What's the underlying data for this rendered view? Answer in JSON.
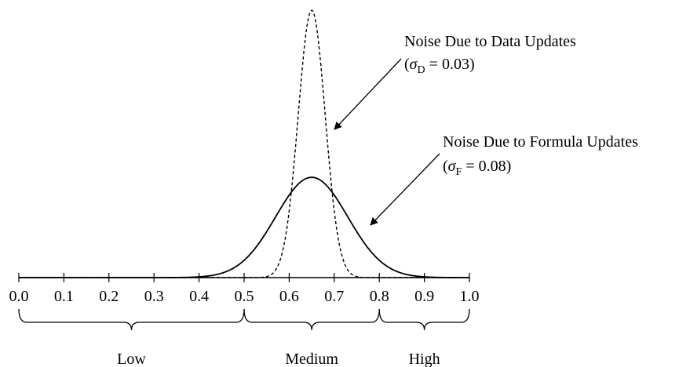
{
  "chart_data": {
    "type": "line",
    "xlim": [
      0.0,
      1.0
    ],
    "grid": false,
    "x_ticks": [
      "0.0",
      "0.1",
      "0.2",
      "0.3",
      "0.4",
      "0.5",
      "0.6",
      "0.7",
      "0.8",
      "0.9",
      "1.0"
    ],
    "series": [
      {
        "name": "Noise Due to Data Updates",
        "distribution": "normal",
        "mean": 0.65,
        "sd": 0.03,
        "style": "dashed"
      },
      {
        "name": "Noise Due to Formula Updates",
        "distribution": "normal",
        "mean": 0.65,
        "sd": 0.08,
        "style": "solid"
      }
    ],
    "annotations": [
      {
        "line1": "Noise Due to Data Updates",
        "sigma": "σ",
        "sub": "D",
        "value": " = 0.03)",
        "open": "(",
        "points_to": "Noise Due to Data Updates"
      },
      {
        "line1": "Noise Due to Formula Updates",
        "sigma": "σ",
        "sub": "F",
        "value": " = 0.08)",
        "open": "(",
        "points_to": "Noise Due to Formula Updates"
      }
    ],
    "ranges": [
      {
        "label": "Low",
        "from": 0.0,
        "to": 0.5
      },
      {
        "label": "Medium",
        "from": 0.5,
        "to": 0.8
      },
      {
        "label": "High",
        "from": 0.8,
        "to": 1.0
      }
    ]
  }
}
